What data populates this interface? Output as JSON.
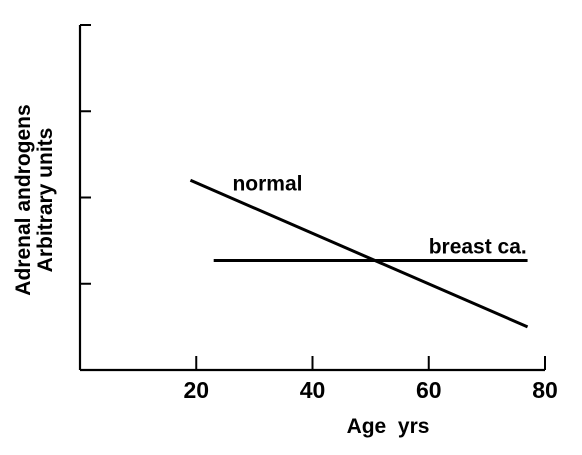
{
  "chart_data": {
    "type": "line",
    "title": "",
    "xlabel": "Age  yrs",
    "ylabel_lines": [
      "Adrenal androgens",
      "Arbitrary units"
    ],
    "xlim": [
      0,
      80
    ],
    "ylim": [
      0,
      4
    ],
    "x_ticks": [
      20,
      40,
      60,
      80
    ],
    "x_tick_labels": [
      "20",
      "40",
      "60",
      "80"
    ],
    "y_ticks": [
      1,
      2,
      3
    ],
    "y_tick_labels": [],
    "grid": false,
    "legend": "none",
    "series": [
      {
        "name": "normal",
        "x": [
          19,
          77
        ],
        "y": [
          2.2,
          0.5
        ]
      },
      {
        "name": "breast ca.",
        "x": [
          23,
          77
        ],
        "y": [
          1.27,
          1.27
        ]
      }
    ]
  }
}
